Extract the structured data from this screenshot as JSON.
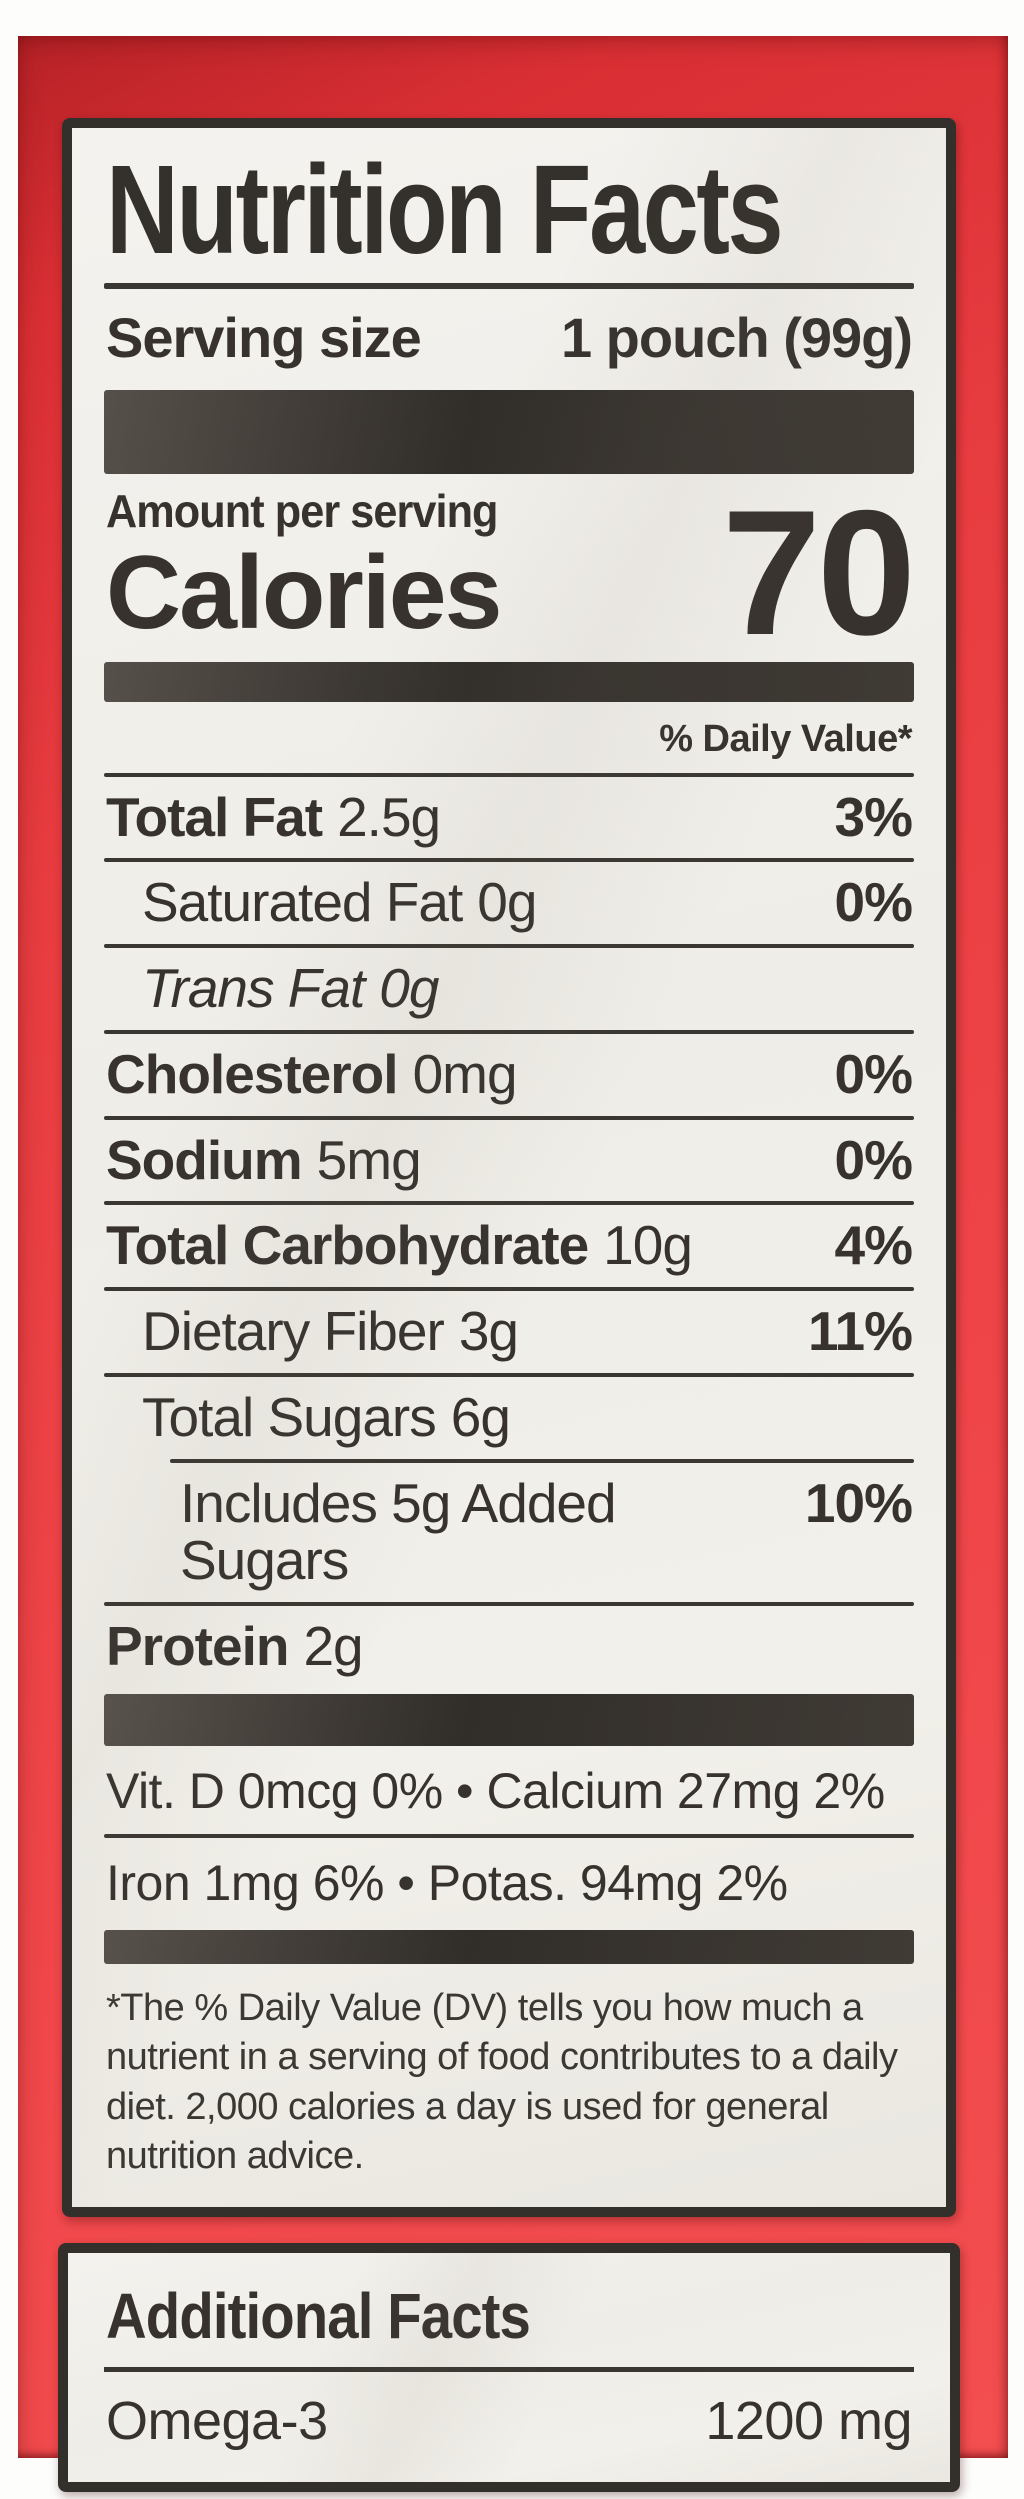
{
  "package": {
    "background_color": "#e73c40"
  },
  "nutrition_label": {
    "title": "Nutrition Facts",
    "serving_size_label": "Serving size",
    "serving_size_value": "1 pouch (99g)",
    "amount_per_serving": "Amount per serving",
    "calories_label": "Calories",
    "calories_value": "70",
    "daily_value_header": "% Daily Value*",
    "nutrients": [
      {
        "name": "Total Fat",
        "amount": "2.5g",
        "dv": "3%"
      },
      {
        "name": "Saturated Fat",
        "amount": "0g",
        "dv": "0%"
      },
      {
        "name": "Trans Fat",
        "amount": "0g",
        "dv": ""
      },
      {
        "name": "Cholesterol",
        "amount": "0mg",
        "dv": "0%"
      },
      {
        "name": "Sodium",
        "amount": "5mg",
        "dv": "0%"
      },
      {
        "name": "Total Carbohydrate",
        "amount": "10g",
        "dv": "4%"
      },
      {
        "name": "Dietary Fiber",
        "amount": "3g",
        "dv": "11%"
      },
      {
        "name": "Total Sugars",
        "amount": "6g",
        "dv": ""
      },
      {
        "name": "Includes 5g Added Sugars",
        "amount": "",
        "dv": "10%"
      },
      {
        "name": "Protein",
        "amount": "2g",
        "dv": ""
      }
    ],
    "micronutrient_rows": [
      "Vit. D 0mcg 0% • Calcium 27mg 2%",
      "Iron 1mg 6% • Potas. 94mg 2%"
    ],
    "footnote": "*The % Daily Value (DV) tells you how much a nutrient in a serving of food contributes to a daily diet. 2,000 calories a day is used for general nutrition advice."
  },
  "additional_label": {
    "title": "Additional Facts",
    "rows": [
      {
        "name": "Omega-3",
        "value": "1200 mg"
      }
    ]
  }
}
